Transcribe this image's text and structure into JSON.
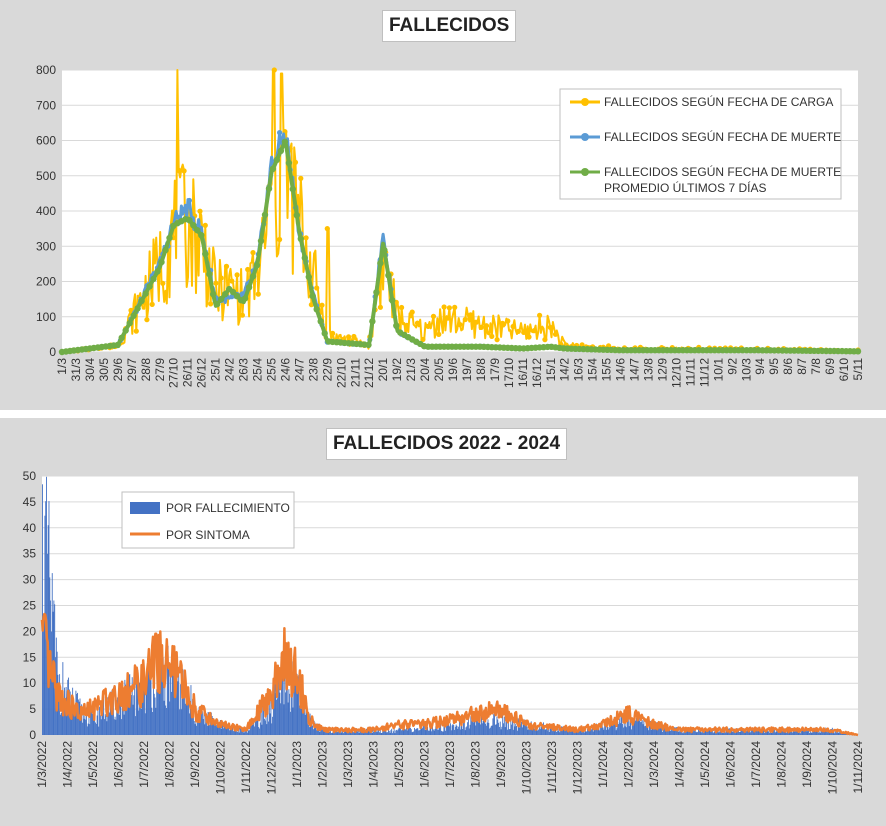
{
  "colors": {
    "carga": "#ffc000",
    "muerte": "#5b9bd5",
    "promedio": "#70ad47",
    "fallecimiento": "#4472c4",
    "sintoma": "#ed7d31",
    "panel": "#d9d9d9"
  },
  "chart_data": [
    {
      "type": "line",
      "title": "FALLECIDOS",
      "ylim": [
        0,
        800
      ],
      "yticks": [
        0,
        100,
        200,
        300,
        400,
        500,
        600,
        700,
        800
      ],
      "grid": true,
      "legend_position": "top-right",
      "xtick_labels": [
        "1/3",
        "31/3",
        "30/4",
        "30/5",
        "29/6",
        "29/7",
        "28/8",
        "27/9",
        "27/10",
        "26/11",
        "26/12",
        "25/1",
        "24/2",
        "26/3",
        "25/4",
        "25/5",
        "24/6",
        "24/7",
        "23/8",
        "22/9",
        "22/10",
        "21/11",
        "21/12",
        "20/1",
        "19/2",
        "21/3",
        "20/4",
        "20/5",
        "19/6",
        "19/7",
        "18/8",
        "17/9",
        "17/10",
        "16/11",
        "16/12",
        "15/1",
        "14/2",
        "16/3",
        "15/4",
        "15/5",
        "14/6",
        "14/7",
        "13/8",
        "12/9",
        "12/10",
        "11/11",
        "11/12",
        "10/1",
        "9/2",
        "10/3",
        "9/4",
        "9/5",
        "8/6",
        "8/7",
        "7/8",
        "6/9",
        "6/10",
        "5/11"
      ],
      "series": [
        {
          "name": "FALLECIDOS SEGÚN FECHA DE CARGA",
          "key_values": [
            [
              0,
              0
            ],
            [
              4,
              20
            ],
            [
              7,
              260
            ],
            [
              8,
              350
            ],
            [
              9,
              380
            ],
            [
              10,
              330
            ],
            [
              11,
              180
            ],
            [
              12,
              190
            ],
            [
              13,
              160
            ],
            [
              14,
              230
            ],
            [
              15,
              430
            ],
            [
              16,
              530
            ],
            [
              17,
              380
            ],
            [
              18,
              230
            ],
            [
              19,
              50
            ],
            [
              22,
              20
            ],
            [
              23,
              290
            ],
            [
              24,
              100
            ],
            [
              26,
              60
            ],
            [
              27,
              100
            ],
            [
              30,
              80
            ],
            [
              33,
              60
            ],
            [
              35,
              80
            ],
            [
              36,
              20
            ],
            [
              40,
              10
            ],
            [
              45,
              10
            ],
            [
              50,
              8
            ],
            [
              55,
              5
            ],
            [
              57,
              5
            ]
          ]
        },
        {
          "name": "FALLECIDOS SEGÚN FECHA DE MUERTE",
          "key_values": [
            [
              0,
              0
            ],
            [
              4,
              20
            ],
            [
              7,
              250
            ],
            [
              8,
              370
            ],
            [
              9,
              410
            ],
            [
              10,
              340
            ],
            [
              11,
              150
            ],
            [
              12,
              150
            ],
            [
              13,
              160
            ],
            [
              14,
              250
            ],
            [
              15,
              530
            ],
            [
              16,
              620
            ],
            [
              17,
              340
            ],
            [
              18,
              160
            ],
            [
              19,
              30
            ],
            [
              22,
              20
            ],
            [
              23,
              340
            ],
            [
              24,
              60
            ],
            [
              26,
              15
            ],
            [
              30,
              15
            ],
            [
              33,
              10
            ],
            [
              35,
              15
            ],
            [
              36,
              10
            ],
            [
              40,
              5
            ],
            [
              45,
              5
            ],
            [
              50,
              5
            ],
            [
              57,
              2
            ]
          ]
        },
        {
          "name": "FALLECIDOS SEGÚN FECHA DE MUERTE PROMEDIO ÚLTIMOS 7 DÍAS",
          "key_values": [
            [
              0,
              0
            ],
            [
              4,
              20
            ],
            [
              7,
              240
            ],
            [
              8,
              360
            ],
            [
              9,
              380
            ],
            [
              10,
              330
            ],
            [
              11,
              130
            ],
            [
              12,
              180
            ],
            [
              13,
              140
            ],
            [
              14,
              250
            ],
            [
              15,
              510
            ],
            [
              16,
              600
            ],
            [
              17,
              340
            ],
            [
              18,
              150
            ],
            [
              19,
              30
            ],
            [
              22,
              20
            ],
            [
              23,
              310
            ],
            [
              24,
              60
            ],
            [
              26,
              15
            ],
            [
              30,
              15
            ],
            [
              33,
              10
            ],
            [
              35,
              15
            ],
            [
              36,
              10
            ],
            [
              40,
              5
            ],
            [
              45,
              5
            ],
            [
              50,
              5
            ],
            [
              57,
              2
            ]
          ]
        }
      ]
    },
    {
      "type": "bar",
      "title": "FALLECIDOS 2022 - 2024",
      "ylim": [
        0,
        50
      ],
      "yticks": [
        0,
        5,
        10,
        15,
        20,
        25,
        30,
        35,
        40,
        45,
        50
      ],
      "grid": true,
      "legend_position": "top-left",
      "xtick_labels": [
        "1/3/2022",
        "1/4/2022",
        "1/5/2022",
        "1/6/2022",
        "1/7/2022",
        "1/8/2022",
        "1/9/2022",
        "1/10/2022",
        "1/11/2022",
        "1/12/2022",
        "1/1/2023",
        "1/2/2023",
        "1/3/2023",
        "1/4/2023",
        "1/5/2023",
        "1/6/2023",
        "1/7/2023",
        "1/8/2023",
        "1/9/2023",
        "1/10/2023",
        "1/11/2023",
        "1/12/2023",
        "1/1/2024",
        "1/2/2024",
        "1/3/2024",
        "1/4/2024",
        "1/5/2024",
        "1/6/2024",
        "1/7/2024",
        "1/8/2024",
        "1/9/2024",
        "1/10/2024",
        "1/11/2024"
      ],
      "series": [
        {
          "name": "POR FALLECIMIENTO",
          "key_values": [
            [
              0,
              40
            ],
            [
              0.3,
              30
            ],
            [
              0.6,
              12
            ],
            [
              1,
              8
            ],
            [
              1.5,
              5
            ],
            [
              2,
              4
            ],
            [
              3,
              7
            ],
            [
              4,
              10
            ],
            [
              4.5,
              14
            ],
            [
              5,
              12
            ],
            [
              5.5,
              10
            ],
            [
              6,
              5
            ],
            [
              7,
              2
            ],
            [
              8,
              1
            ],
            [
              9,
              6
            ],
            [
              9.5,
              12
            ],
            [
              10,
              9
            ],
            [
              10.5,
              3
            ],
            [
              11,
              1
            ],
            [
              12,
              1
            ],
            [
              14,
              1
            ],
            [
              16,
              2
            ],
            [
              17,
              3
            ],
            [
              18,
              3
            ],
            [
              19,
              2
            ],
            [
              21,
              1
            ],
            [
              22,
              2
            ],
            [
              23,
              3
            ],
            [
              24,
              2
            ],
            [
              25,
              1
            ],
            [
              28,
              1
            ],
            [
              30,
              1
            ],
            [
              31,
              1
            ],
            [
              32,
              0
            ]
          ]
        },
        {
          "name": "POR SINTOMA",
          "key_values": [
            [
              0,
              19
            ],
            [
              0.3,
              12
            ],
            [
              0.6,
              8
            ],
            [
              1,
              6
            ],
            [
              1.5,
              4
            ],
            [
              2,
              5
            ],
            [
              3,
              8
            ],
            [
              4,
              10
            ],
            [
              4.5,
              15
            ],
            [
              5,
              13
            ],
            [
              5.5,
              10
            ],
            [
              6,
              5
            ],
            [
              7,
              2
            ],
            [
              8,
              1
            ],
            [
              9,
              8
            ],
            [
              9.5,
              15
            ],
            [
              10,
              12
            ],
            [
              10.5,
              3
            ],
            [
              11,
              1
            ],
            [
              12,
              1
            ],
            [
              13,
              1
            ],
            [
              14,
              2
            ],
            [
              15,
              2
            ],
            [
              16,
              3
            ],
            [
              17,
              4
            ],
            [
              18,
              5
            ],
            [
              19,
              2
            ],
            [
              21,
              1
            ],
            [
              22,
              2
            ],
            [
              23,
              4
            ],
            [
              24,
              2
            ],
            [
              25,
              1
            ],
            [
              28,
              1
            ],
            [
              30,
              1
            ],
            [
              31,
              1
            ],
            [
              32,
              0
            ]
          ]
        }
      ]
    }
  ]
}
